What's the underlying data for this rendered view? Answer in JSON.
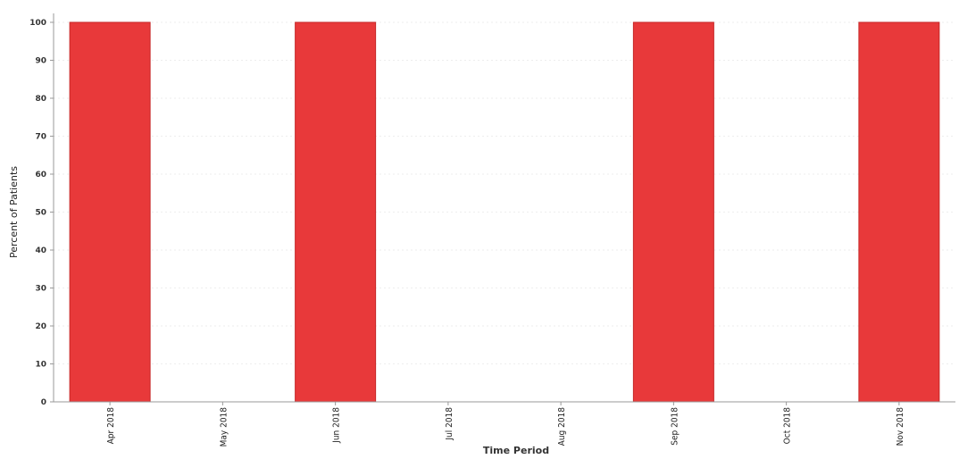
{
  "chart_data": {
    "type": "bar",
    "categories": [
      "Apr 2018",
      "May 2018",
      "Jun 2018",
      "Jul 2018",
      "Aug 2018",
      "Sep 2018",
      "Oct 2018",
      "Nov 2018"
    ],
    "values": [
      100,
      0,
      100,
      0,
      0,
      100,
      0,
      100
    ],
    "title": "",
    "xlabel": "Time Period",
    "ylabel": "Percent of Patients",
    "ylim": [
      0,
      100
    ],
    "yticks": [
      0,
      10,
      20,
      30,
      40,
      50,
      60,
      70,
      80,
      90,
      100
    ],
    "grid": true,
    "bar_color": "#e8393a",
    "bar_edge_color": "#c62828"
  }
}
